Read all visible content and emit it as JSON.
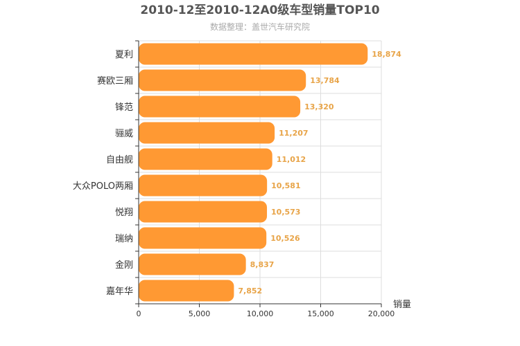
{
  "chart_data": {
    "type": "bar",
    "orientation": "horizontal",
    "title": "2010-12至2010-12A0级车型销量TOP10",
    "subtitle": "数据整理：盖世汽车研究院",
    "categories": [
      "夏利",
      "赛欧三厢",
      "锋范",
      "骊威",
      "自由舰",
      "大众POLO两厢",
      "悦翔",
      "瑞纳",
      "金刚",
      "嘉年华"
    ],
    "values": [
      18874,
      13784,
      13320,
      11207,
      11012,
      10581,
      10573,
      10526,
      8837,
      7852
    ],
    "value_labels": [
      "18,874",
      "13,784",
      "13,320",
      "11,207",
      "11,012",
      "10,581",
      "10,573",
      "10,526",
      "8,837",
      "7,852"
    ],
    "xlim": [
      0,
      20000
    ],
    "xticks": [
      0,
      5000,
      10000,
      15000,
      20000
    ],
    "xtick_labels": [
      "0",
      "5,000",
      "10,000",
      "15,000",
      "20,000"
    ],
    "xlabel": "销量",
    "ylabel": "",
    "grid": true,
    "bar_color": "#ff9933",
    "label_color": "#e8a448"
  }
}
